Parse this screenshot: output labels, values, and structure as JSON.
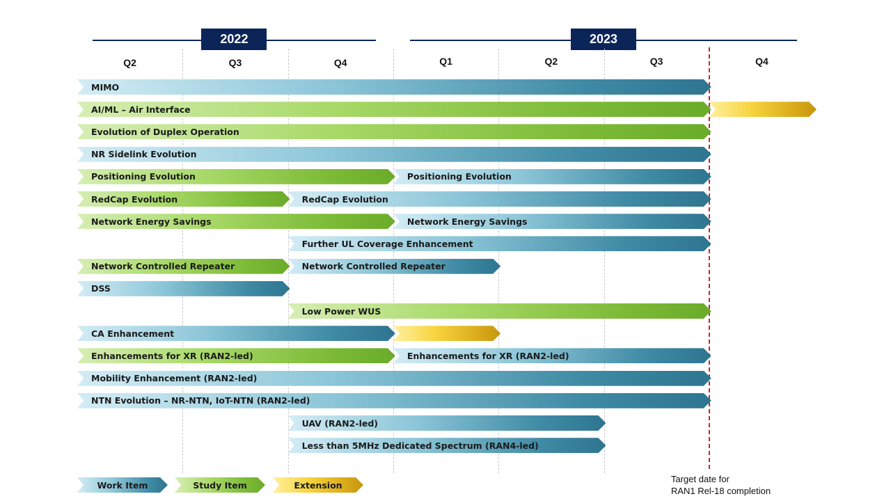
{
  "years": [
    {
      "label": "2022",
      "start_quarter": 0,
      "end_quarter": 3
    },
    {
      "label": "2023",
      "start_quarter": 3,
      "end_quarter": 7
    }
  ],
  "quarters": [
    "Q2",
    "Q3",
    "Q4",
    "Q1",
    "Q2",
    "Q3",
    "Q4"
  ],
  "target_quarter": 6,
  "colors": {
    "year_band": "#0b2559",
    "work_item": "#2e7590",
    "study_item": "#6aab2a",
    "extension": "#c6960f",
    "target_line": "#c0282c"
  },
  "rows": [
    {
      "segments": [
        {
          "label": "MIMO",
          "type": "wi",
          "start": 0,
          "end": 6
        }
      ]
    },
    {
      "segments": [
        {
          "label": "AI/ML – Air Interface",
          "type": "si",
          "start": 0,
          "end": 6
        },
        {
          "label": "",
          "type": "ext",
          "start": 6,
          "end": 7
        }
      ]
    },
    {
      "segments": [
        {
          "label": "Evolution of Duplex Operation",
          "type": "si",
          "start": 0,
          "end": 6
        }
      ]
    },
    {
      "segments": [
        {
          "label": "NR Sidelink Evolution",
          "type": "wi",
          "start": 0,
          "end": 6
        }
      ]
    },
    {
      "segments": [
        {
          "label": "Positioning Evolution",
          "type": "si",
          "start": 0,
          "end": 3
        },
        {
          "label": "Positioning Evolution",
          "type": "wi",
          "start": 3,
          "end": 6
        }
      ]
    },
    {
      "segments": [
        {
          "label": "RedCap Evolution",
          "type": "si",
          "start": 0,
          "end": 2
        },
        {
          "label": "RedCap Evolution",
          "type": "wi",
          "start": 2,
          "end": 6
        }
      ]
    },
    {
      "segments": [
        {
          "label": "Network Energy Savings",
          "type": "si",
          "start": 0,
          "end": 3
        },
        {
          "label": "Network Energy Savings",
          "type": "wi",
          "start": 3,
          "end": 6
        }
      ]
    },
    {
      "segments": [
        {
          "label": "Further UL Coverage Enhancement",
          "type": "wi",
          "start": 2,
          "end": 6
        }
      ]
    },
    {
      "segments": [
        {
          "label": "Network Controlled Repeater",
          "type": "si",
          "start": 0,
          "end": 2
        },
        {
          "label": "Network Controlled Repeater",
          "type": "wi",
          "start": 2,
          "end": 4
        }
      ]
    },
    {
      "segments": [
        {
          "label": "DSS",
          "type": "wi",
          "start": 0,
          "end": 2
        }
      ]
    },
    {
      "segments": [
        {
          "label": "Low Power WUS",
          "type": "si",
          "start": 2,
          "end": 6
        }
      ]
    },
    {
      "segments": [
        {
          "label": "CA Enhancement",
          "type": "wi",
          "start": 0,
          "end": 3
        },
        {
          "label": "",
          "type": "ext",
          "start": 3,
          "end": 4
        }
      ]
    },
    {
      "segments": [
        {
          "label": "Enhancements for XR (RAN2-led)",
          "type": "si",
          "start": 0,
          "end": 3
        },
        {
          "label": "Enhancements for XR (RAN2-led)",
          "type": "wi",
          "start": 3,
          "end": 6
        }
      ]
    },
    {
      "segments": [
        {
          "label": "Mobility Enhancement (RAN2-led)",
          "type": "wi",
          "start": 0,
          "end": 6
        }
      ]
    },
    {
      "segments": [
        {
          "label": "NTN Evolution – NR-NTN, IoT-NTN (RAN2-led)",
          "type": "wi",
          "start": 0,
          "end": 6
        }
      ]
    },
    {
      "segments": [
        {
          "label": "UAV (RAN2-led)",
          "type": "wi",
          "start": 2,
          "end": 5
        }
      ]
    },
    {
      "segments": [
        {
          "label": "Less than 5MHz Dedicated Spectrum (RAN4-led)",
          "type": "wi",
          "start": 2,
          "end": 5
        }
      ]
    }
  ],
  "legend": [
    {
      "label": "Work Item",
      "type": "wi"
    },
    {
      "label": "Study Item",
      "type": "si"
    },
    {
      "label": "Extension",
      "type": "ext"
    }
  ],
  "target_note": {
    "line1": "Target date for",
    "line2": "RAN1 Rel-18 completion"
  }
}
